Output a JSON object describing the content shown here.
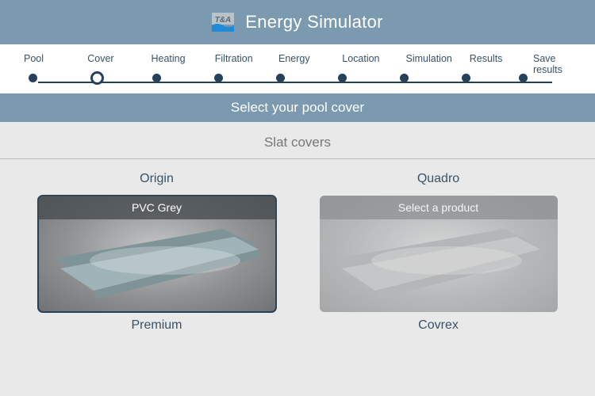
{
  "app": {
    "title": "Energy Simulator"
  },
  "steps": [
    {
      "label": "Pool"
    },
    {
      "label": "Cover",
      "active": true
    },
    {
      "label": "Heating"
    },
    {
      "label": "Filtration"
    },
    {
      "label": "Energy"
    },
    {
      "label": "Location"
    },
    {
      "label": "Simulation"
    },
    {
      "label": "Results"
    },
    {
      "label": "Save results"
    }
  ],
  "subheader": "Select your pool cover",
  "section_title": "Slat covers",
  "categories": [
    {
      "name": "Origin",
      "selected": true,
      "product_label": "PVC Grey",
      "slat_fill": "#9fb3b8",
      "slat_edge": "#7f9499"
    },
    {
      "name": "Quadro",
      "selected": false,
      "product_label": "Select a product",
      "slat_fill": "#a8aaac",
      "slat_edge": "#8c8e90"
    },
    {
      "name": "Premium"
    },
    {
      "name": "Covrex"
    }
  ],
  "colors": {
    "header_bg": "#7b99af",
    "step_line": "#26415a"
  }
}
